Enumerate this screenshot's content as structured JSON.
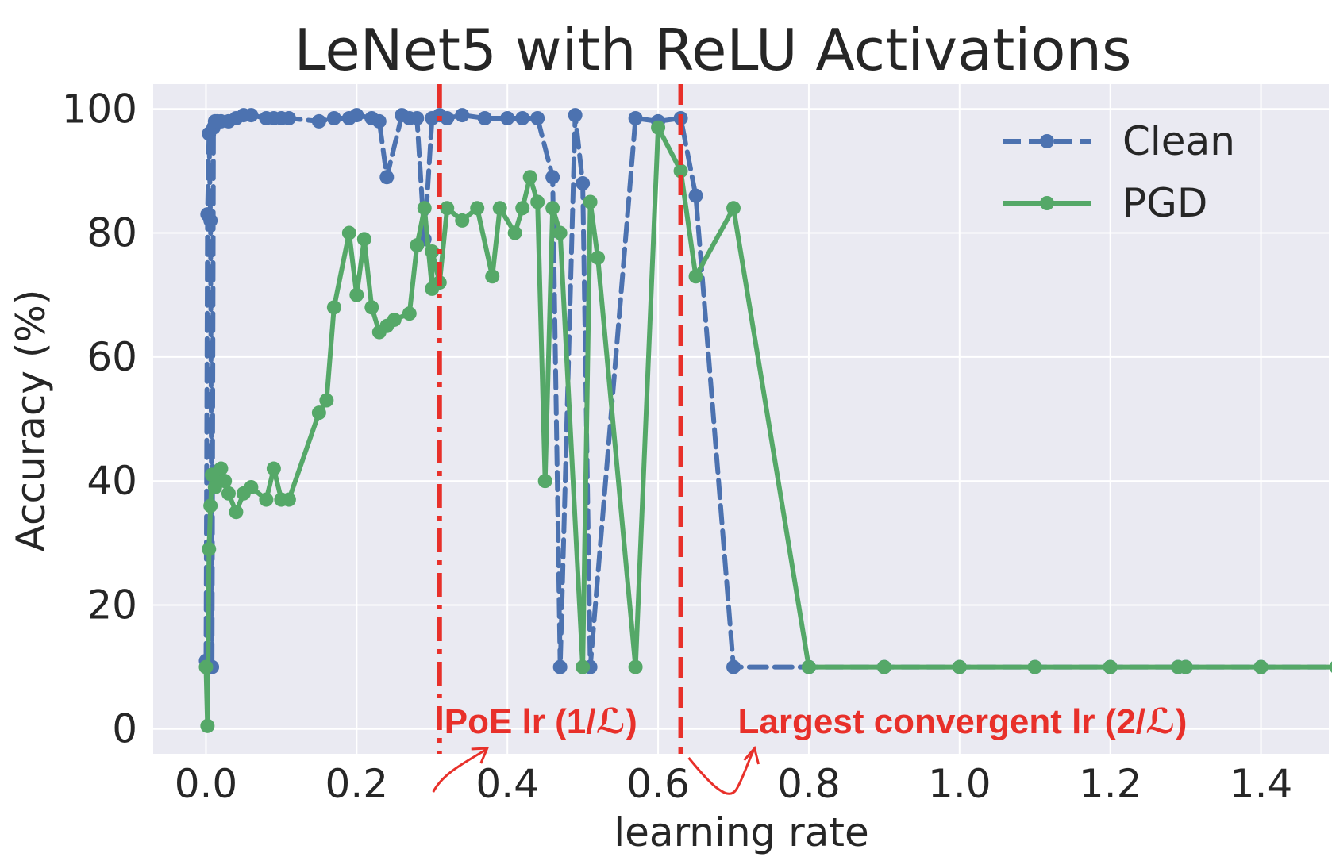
{
  "chart_data": {
    "type": "line",
    "title": "LeNet5 with ReLU Activations",
    "xlabel": "learning rate",
    "ylabel": "Accuracy (%)",
    "xlim": [
      -0.07,
      1.49
    ],
    "ylim": [
      -4,
      104
    ],
    "xticks": [
      0.0,
      0.2,
      0.4,
      0.6,
      0.8,
      1.0,
      1.2,
      1.4
    ],
    "xtick_labels": [
      "0.0",
      "0.2",
      "0.4",
      "0.6",
      "0.8",
      "1.0",
      "1.2",
      "1.4"
    ],
    "yticks": [
      0,
      20,
      40,
      60,
      80,
      100
    ],
    "ytick_labels": [
      "0",
      "20",
      "40",
      "60",
      "80",
      "100"
    ],
    "grid": true,
    "legend_position": "top-right",
    "series": [
      {
        "name": "Clean",
        "color": "#4c72b0",
        "line_style": "dashed",
        "marker": "circle",
        "x": [
          0.0,
          0.002,
          0.004,
          0.006,
          0.008,
          0.01,
          0.012,
          0.015,
          0.02,
          0.03,
          0.04,
          0.05,
          0.06,
          0.08,
          0.09,
          0.1,
          0.11,
          0.15,
          0.17,
          0.19,
          0.2,
          0.22,
          0.23,
          0.24,
          0.26,
          0.27,
          0.28,
          0.29,
          0.3,
          0.31,
          0.32,
          0.34,
          0.37,
          0.4,
          0.42,
          0.44,
          0.46,
          0.47,
          0.49,
          0.5,
          0.51,
          0.57,
          0.6,
          0.63,
          0.65,
          0.7,
          0.8,
          0.9,
          1.0,
          1.1,
          1.2,
          1.29,
          1.3,
          1.4,
          1.5
        ],
        "y": [
          11,
          83,
          96,
          82,
          10,
          97,
          98,
          98,
          98,
          98,
          98.5,
          99,
          99,
          98.5,
          98.5,
          98.5,
          98.5,
          98,
          98.5,
          98.5,
          99,
          98.5,
          98,
          89,
          99,
          98.5,
          98.5,
          79,
          98.5,
          99,
          98.5,
          99,
          98.5,
          98.5,
          98.5,
          98.5,
          89,
          10,
          99,
          88,
          10,
          98.5,
          98,
          98.5,
          86,
          10,
          10,
          10,
          10,
          10,
          10,
          10,
          10,
          10,
          10
        ]
      },
      {
        "name": "PGD",
        "color": "#55a868",
        "line_style": "solid",
        "marker": "circle",
        "x": [
          0.0,
          0.002,
          0.004,
          0.006,
          0.008,
          0.01,
          0.012,
          0.015,
          0.02,
          0.025,
          0.03,
          0.04,
          0.05,
          0.06,
          0.08,
          0.09,
          0.1,
          0.11,
          0.15,
          0.16,
          0.17,
          0.19,
          0.2,
          0.21,
          0.22,
          0.23,
          0.24,
          0.25,
          0.27,
          0.28,
          0.29,
          0.3,
          0.3,
          0.31,
          0.32,
          0.34,
          0.36,
          0.38,
          0.39,
          0.41,
          0.42,
          0.43,
          0.44,
          0.45,
          0.46,
          0.47,
          0.5,
          0.51,
          0.52,
          0.57,
          0.6,
          0.63,
          0.65,
          0.7,
          0.8,
          0.9,
          1.0,
          1.1,
          1.2,
          1.29,
          1.3,
          1.4,
          1.5
        ],
        "y": [
          10,
          0.5,
          29,
          36,
          41,
          41,
          39,
          41,
          42,
          40,
          38,
          35,
          38,
          39,
          37,
          42,
          37,
          37,
          51,
          53,
          68,
          80,
          70,
          79,
          68,
          64,
          65,
          66,
          67,
          78,
          84,
          71,
          77,
          72,
          84,
          82,
          84,
          73,
          84,
          80,
          84,
          89,
          85,
          40,
          84,
          80,
          10,
          85,
          76,
          10,
          97,
          90,
          73,
          84,
          10,
          10,
          10,
          10,
          10,
          10,
          10,
          10,
          10
        ]
      }
    ],
    "vlines": [
      {
        "x": 0.31,
        "style": "dashdot",
        "color": "#e8302a"
      },
      {
        "x": 0.63,
        "style": "dashed",
        "color": "#e8302a"
      }
    ],
    "annotations": [
      {
        "text": "PoE lr (1/ℒ)",
        "x": 0.31,
        "color": "#e8302a"
      },
      {
        "text": "Largest convergent lr (2/ℒ)",
        "x": 0.63,
        "color": "#e8302a"
      }
    ]
  }
}
